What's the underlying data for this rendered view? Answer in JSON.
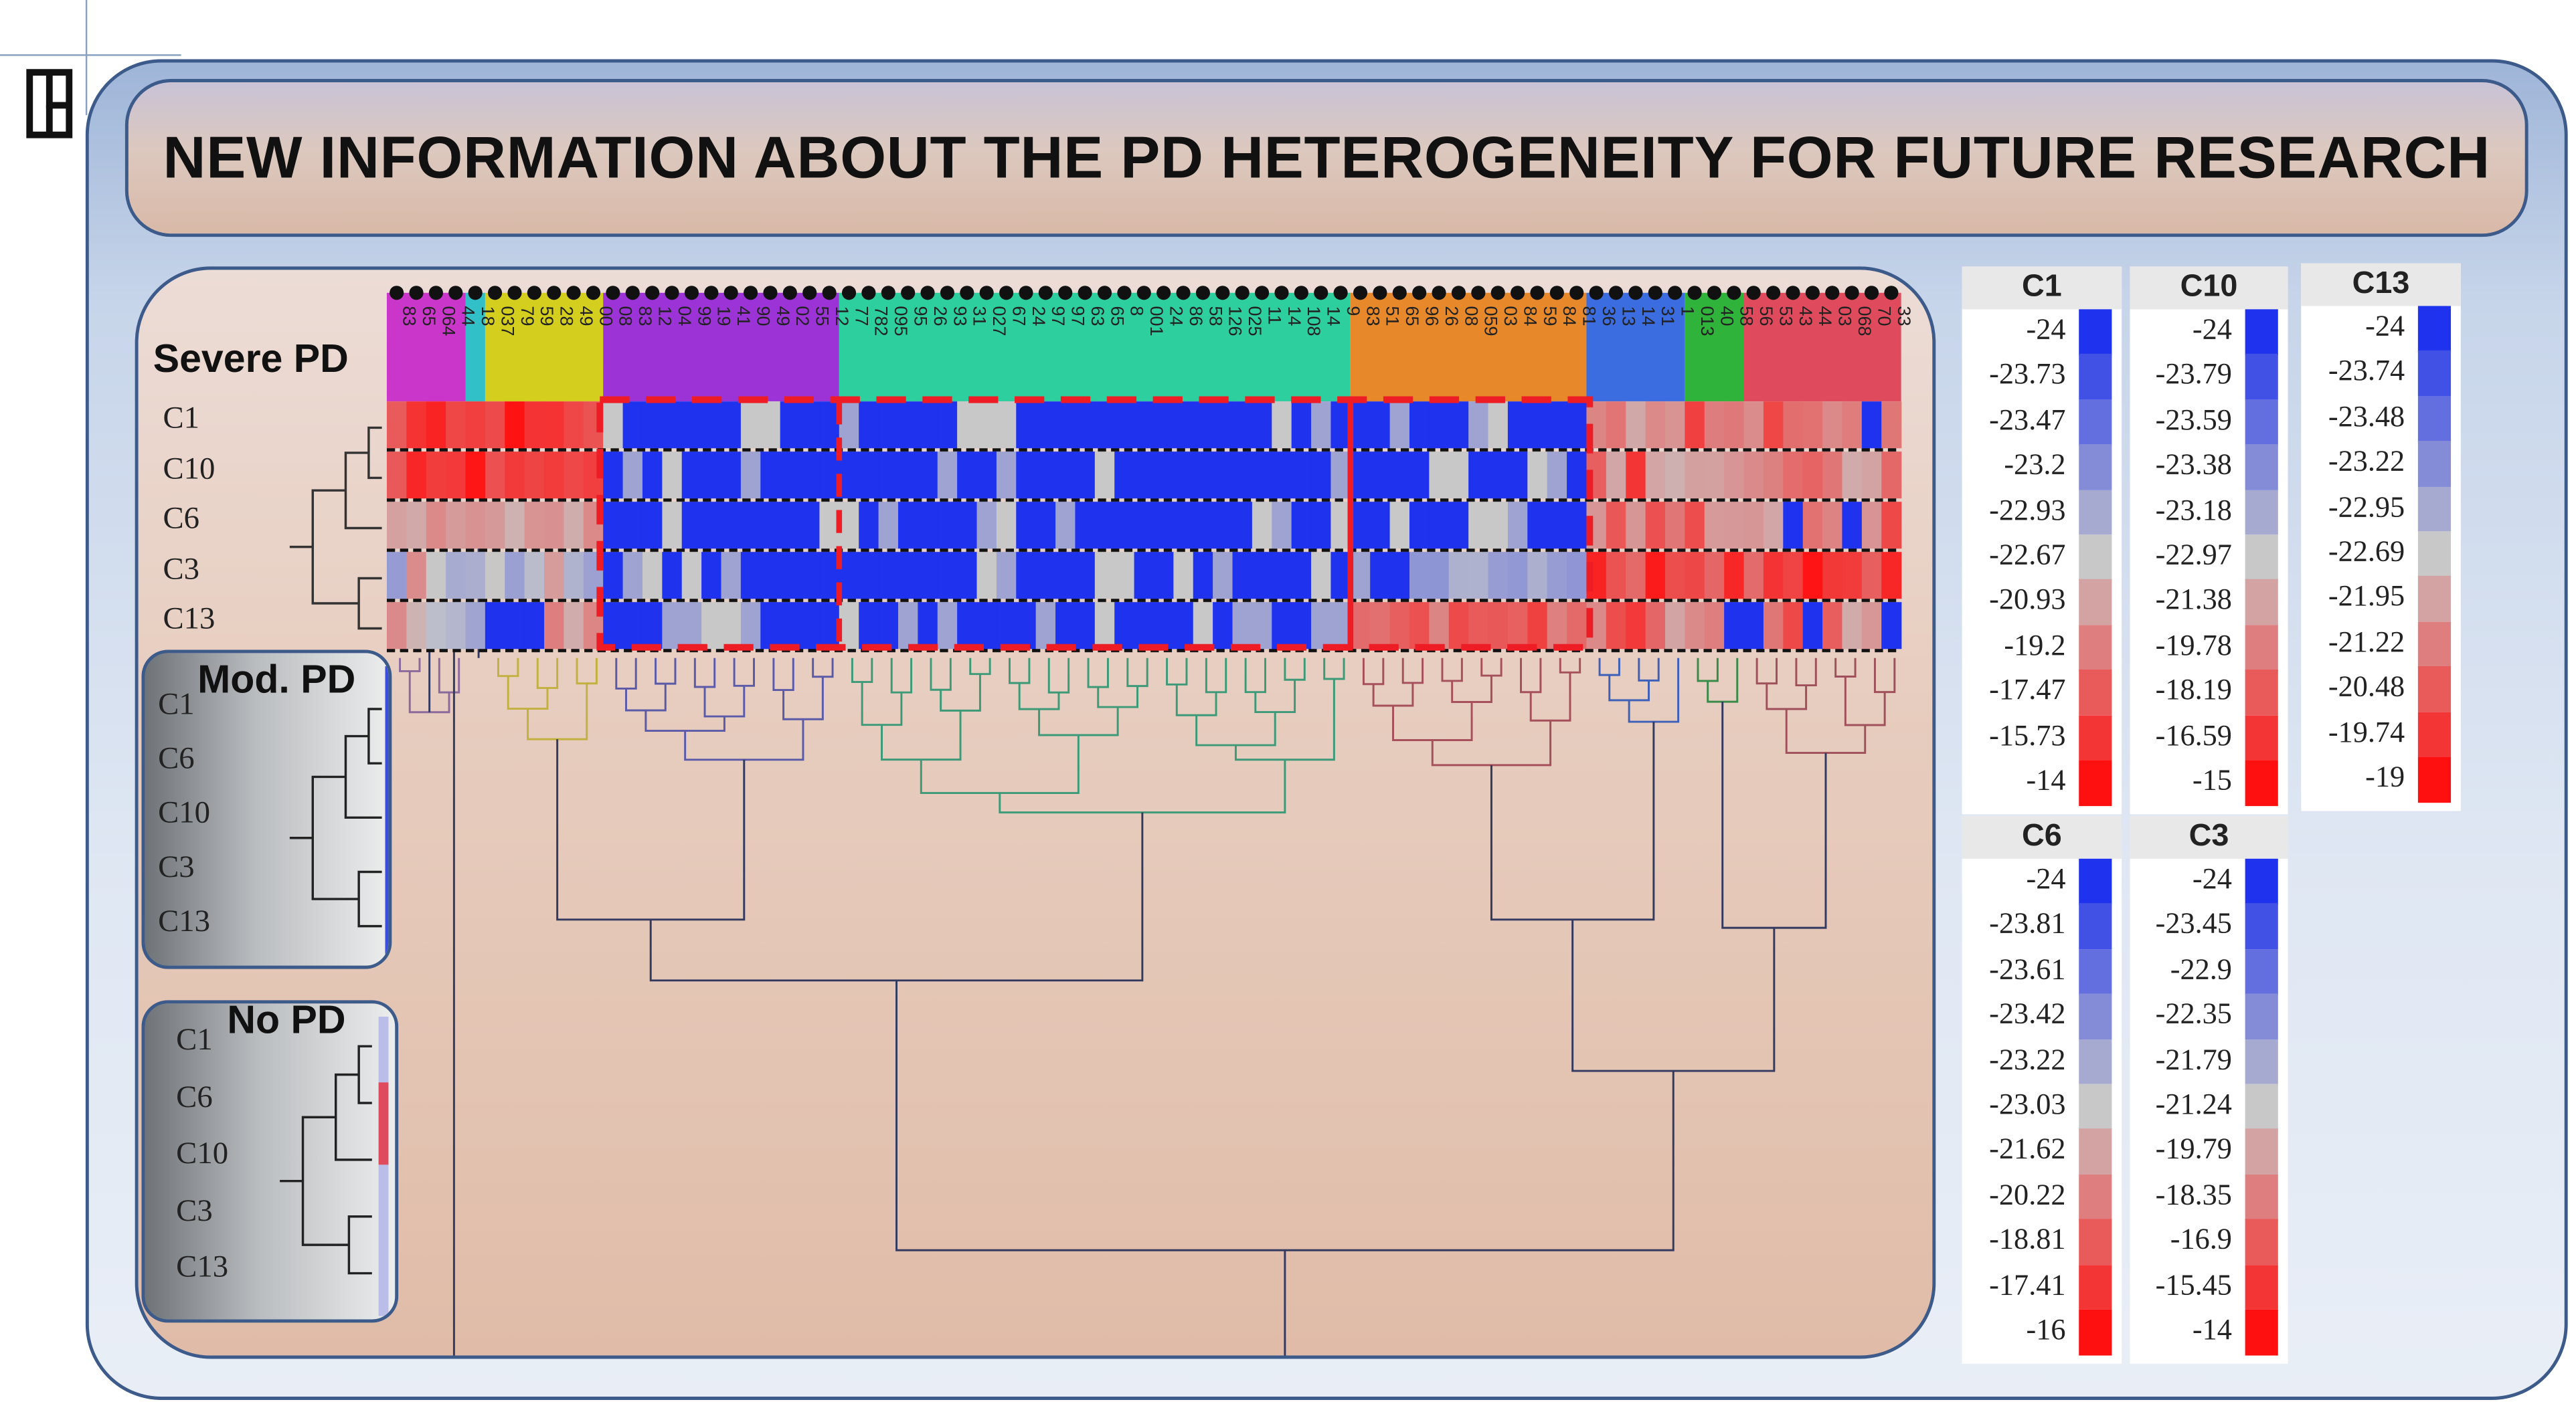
{
  "title": "NEW INFORMATION ABOUT THE PD HETEROGENEITY FOR FUTURE RESEARCH",
  "groups": {
    "severe": {
      "label": "Severe PD",
      "rows": [
        "C1",
        "C10",
        "C6",
        "C3",
        "C13"
      ]
    },
    "moderate": {
      "label": "Mod. PD",
      "rows": [
        "C1",
        "C6",
        "C10",
        "C3",
        "C13"
      ]
    },
    "none": {
      "label": "No PD",
      "rows": [
        "C1",
        "C6",
        "C10",
        "C3",
        "C13"
      ]
    }
  },
  "sample_labels": [
    "83",
    "65",
    "064",
    "44",
    "18",
    "037",
    "79",
    "59",
    "28",
    "49",
    "00",
    "08",
    "83",
    "12",
    "04",
    "99",
    "19",
    "41",
    "90",
    "49",
    "02",
    "55",
    "12",
    "77",
    "782",
    "095",
    "95",
    "26",
    "93",
    "31",
    "027",
    "67",
    "24",
    "97",
    "97",
    "63",
    "65",
    "8",
    "001",
    "24",
    "86",
    "58",
    "126",
    "025",
    "11",
    "14",
    "108",
    "14",
    "9",
    "83",
    "51",
    "65",
    "96",
    "26",
    "08",
    "059",
    "03",
    "84",
    "59",
    "84",
    "81",
    "36",
    "13",
    "14",
    "31",
    "1",
    "013",
    "40",
    "58",
    "56",
    "53",
    "43",
    "44",
    "03",
    "068",
    "70",
    "33"
  ],
  "color_ramp": {
    "low": "#1f33ee",
    "mid": "#c8c8c8",
    "high": "#ff1010"
  },
  "cluster_colors": [
    "#c936c9",
    "#31c0c8",
    "#d4cf1e",
    "#9c33d6",
    "#2ecf9e",
    "#e7892a",
    "#3b6de0",
    "#2fb33a",
    "#e04a5d"
  ],
  "legends": [
    {
      "id": "C1",
      "title": "C1",
      "values": [
        "-24",
        "-23.73",
        "-23.47",
        "-23.2",
        "-22.93",
        "-22.67",
        "-20.93",
        "-19.2",
        "-17.47",
        "-15.73",
        "-14"
      ]
    },
    {
      "id": "C10",
      "title": "C10",
      "values": [
        "-24",
        "-23.79",
        "-23.59",
        "-23.38",
        "-23.18",
        "-22.97",
        "-21.38",
        "-19.78",
        "-18.19",
        "-16.59",
        "-15"
      ]
    },
    {
      "id": "C13",
      "title": "C13",
      "values": [
        "-24",
        "-23.74",
        "-23.48",
        "-23.22",
        "-22.95",
        "-22.69",
        "-21.95",
        "-21.22",
        "-20.48",
        "-19.74",
        "-19"
      ]
    },
    {
      "id": "C6",
      "title": "C6",
      "values": [
        "-24",
        "-23.81",
        "-23.61",
        "-23.42",
        "-23.22",
        "-23.03",
        "-21.62",
        "-20.22",
        "-18.81",
        "-17.41",
        "-16"
      ]
    },
    {
      "id": "C3",
      "title": "C3",
      "values": [
        "-24",
        "-23.45",
        "-22.9",
        "-22.35",
        "-21.79",
        "-21.24",
        "-19.79",
        "-18.35",
        "-16.9",
        "-15.45",
        "-14"
      ]
    }
  ]
}
